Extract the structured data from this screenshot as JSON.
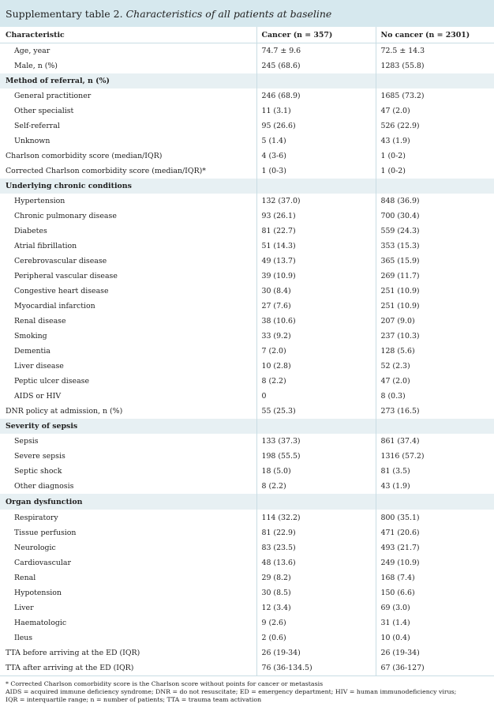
{
  "title": {
    "lead": "Supplementary table 2.",
    "italic": "Characteristics of all patients at baseline"
  },
  "headers": [
    "Characteristic",
    "Cancer (n = 357)",
    "No cancer (n = 2301)"
  ],
  "rows": [
    {
      "label": "Age, year",
      "cancer": "74.7 ± 9.6",
      "nocancer": "72.5 ± 14.3"
    },
    {
      "label": "Male, n (%)",
      "cancer": "245 (68.6)",
      "nocancer": "1283 (55.8)"
    },
    {
      "label": "Method of referral, n (%)",
      "section": true
    },
    {
      "label": "General practitioner",
      "cancer": "246 (68.9)",
      "nocancer": "1685 (73.2)"
    },
    {
      "label": "Other specialist",
      "cancer": "11 (3.1)",
      "nocancer": "47 (2.0)"
    },
    {
      "label": "Self-referral",
      "cancer": "95 (26.6)",
      "nocancer": "526 (22.9)"
    },
    {
      "label": "Unknown",
      "cancer": "5 (1.4)",
      "nocancer": "43 (1.9)"
    },
    {
      "label": "Charlson comorbidity score (median/IQR)",
      "cancer": "4 (3-6)",
      "nocancer": "1 (0-2)",
      "top": true
    },
    {
      "label": "Corrected Charlson comorbidity score (median/IQR)*",
      "cancer": "1 (0-3)",
      "nocancer": "1 (0-2)",
      "top": true
    },
    {
      "label": "Underlying chronic conditions",
      "section": true
    },
    {
      "label": "Hypertension",
      "cancer": "132 (37.0)",
      "nocancer": "848 (36.9)"
    },
    {
      "label": "Chronic pulmonary disease",
      "cancer": "93 (26.1)",
      "nocancer": "700 (30.4)"
    },
    {
      "label": "Diabetes",
      "cancer": "81 (22.7)",
      "nocancer": "559 (24.3)"
    },
    {
      "label": "Atrial fibrillation",
      "cancer": "51 (14.3)",
      "nocancer": "353 (15.3)"
    },
    {
      "label": "Cerebrovascular disease",
      "cancer": "49 (13.7)",
      "nocancer": "365 (15.9)"
    },
    {
      "label": "Peripheral vascular disease",
      "cancer": "39 (10.9)",
      "nocancer": "269 (11.7)"
    },
    {
      "label": "Congestive heart disease",
      "cancer": "30 (8.4)",
      "nocancer": "251 (10.9)"
    },
    {
      "label": "Myocardial infarction",
      "cancer": "27 (7.6)",
      "nocancer": "251 (10.9)"
    },
    {
      "label": "Renal disease",
      "cancer": "38 (10.6)",
      "nocancer": "207 (9.0)"
    },
    {
      "label": "Smoking",
      "cancer": "33 (9.2)",
      "nocancer": "237 (10.3)"
    },
    {
      "label": "Dementia",
      "cancer": "7 (2.0)",
      "nocancer": "128 (5.6)"
    },
    {
      "label": "Liver disease",
      "cancer": "10 (2.8)",
      "nocancer": "52 (2.3)"
    },
    {
      "label": "Peptic ulcer disease",
      "cancer": "8 (2.2)",
      "nocancer": "47 (2.0)"
    },
    {
      "label": "AIDS or HIV",
      "cancer": "0",
      "nocancer": "8 (0.3)"
    },
    {
      "label": "DNR policy at admission, n (%)",
      "cancer": "55 (25.3)",
      "nocancer": "273 (16.5)",
      "top": true
    },
    {
      "label": "Severity of sepsis",
      "section": true
    },
    {
      "label": "Sepsis",
      "cancer": "133 (37.3)",
      "nocancer": "861 (37.4)"
    },
    {
      "label": "Severe sepsis",
      "cancer": "198 (55.5)",
      "nocancer": "1316 (57.2)"
    },
    {
      "label": "Septic shock",
      "cancer": "18 (5.0)",
      "nocancer": "81 (3.5)"
    },
    {
      "label": "Other diagnosis",
      "cancer": "8 (2.2)",
      "nocancer": "43 (1.9)"
    },
    {
      "label": "Organ dysfunction",
      "section": true,
      "tall": true
    },
    {
      "label": "Respiratory",
      "cancer": "114 (32.2)",
      "nocancer": "800 (35.1)",
      "tall": true
    },
    {
      "label": "Tissue perfusion",
      "cancer": "81 (22.9)",
      "nocancer": "471 (20.6)"
    },
    {
      "label": "Neurologic",
      "cancer": "83 (23.5)",
      "nocancer": "493 (21.7)"
    },
    {
      "label": "Cardiovascular",
      "cancer": "48 (13.6)",
      "nocancer": "249 (10.9)"
    },
    {
      "label": "Renal",
      "cancer": "29 (8.2)",
      "nocancer": "168 (7.4)"
    },
    {
      "label": "Hypotension",
      "cancer": "30 (8.5)",
      "nocancer": "150 (6.6)"
    },
    {
      "label": "Liver",
      "cancer": "12 (3.4)",
      "nocancer": "69 (3.0)"
    },
    {
      "label": "Haematologic",
      "cancer": "9 (2.6)",
      "nocancer": "31 (1.4)"
    },
    {
      "label": "Ileus",
      "cancer": "2 (0.6)",
      "nocancer": "10 (0.4)"
    },
    {
      "label": "TTA before arriving at the ED (IQR)",
      "cancer": "26 (19-34)",
      "nocancer": "26 (19-34)",
      "top": true
    },
    {
      "label": "TTA after arriving at the ED (IQR)",
      "cancer": "76 (36-134.5)",
      "nocancer": "67 (36-127)",
      "top": true,
      "last": true
    }
  ],
  "footnotes": [
    "* Corrected Charlson comorbidity score is the Charlson score without points for cancer or metastasis",
    "AIDS = acquired immune deficiency syndrome; DNR = do not resuscitate; ED = emergency department; HIV = human immunodeficiency virus;",
    "IQR = interquartile range; n = number of patients; TTA = trauma team activation"
  ]
}
